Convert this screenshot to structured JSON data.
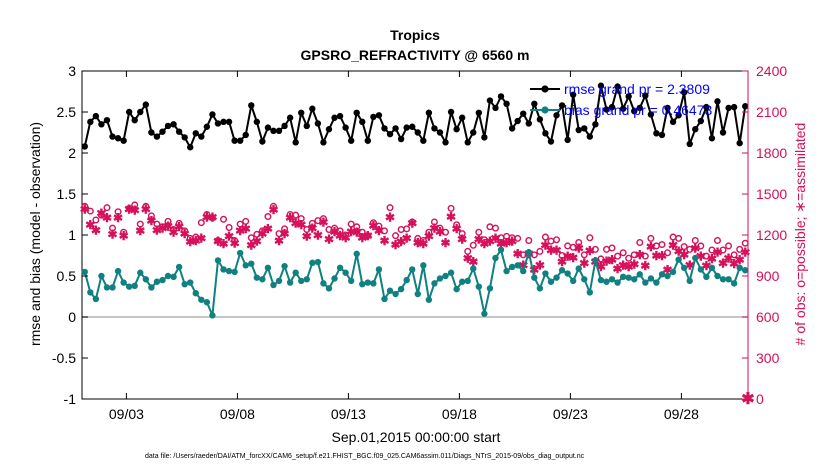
{
  "colors": {
    "rmse": "#000000",
    "bias": "#108080",
    "obs": "#d6105a",
    "legend_text": "#0000ff",
    "zero_line": "#b4b4b4",
    "axis": "#000000"
  },
  "chart_data": {
    "type": "line",
    "title": "Tropics",
    "subtitle": "GPSRO_REFRACTIVITY @ 6560 m",
    "xlabel": "Sep.01,2015 00:00:00 start",
    "ylabel": "rmse and bias (model - observation)",
    "y2label": "# of obs: o=possible; ∗=assimilated",
    "footnote": "data file: /Users/raeder/DAI/ATM_forcXX/CAM6_setup/f.e21.FHIST_BGC.f09_025.CAM6assim.011/Diags_NTrS_2015-09/obs_diag_output.nc",
    "xlim": [
      1.0,
      31.0
    ],
    "ylim": [
      -1,
      3
    ],
    "y2lim": [
      0,
      2400
    ],
    "x_ticks": [
      3,
      8,
      13,
      18,
      23,
      28
    ],
    "x_tick_labels": [
      "09/03",
      "09/08",
      "09/13",
      "09/18",
      "09/23",
      "09/28"
    ],
    "y_ticks": [
      -1,
      -0.5,
      0,
      0.5,
      1,
      1.5,
      2,
      2.5,
      3
    ],
    "y_tick_labels": [
      "-1",
      "-0.5",
      "0",
      "0.5",
      "1",
      "1.5",
      "2",
      "2.5",
      "3"
    ],
    "y2_ticks": [
      0,
      300,
      600,
      900,
      1200,
      1500,
      1800,
      2100,
      2400
    ],
    "y2_tick_labels": [
      "0",
      "300",
      "600",
      "900",
      "1200",
      "1500",
      "1800",
      "2100",
      "2400"
    ],
    "legend": [
      {
        "name": "rmse grand pr = 2.3809",
        "series": "rmse"
      },
      {
        "name": "bias grand pr = 0.46473",
        "series": "bias"
      }
    ],
    "x": [
      1.125,
      1.375,
      1.625,
      1.875,
      2.125,
      2.375,
      2.625,
      2.875,
      3.125,
      3.375,
      3.625,
      3.875,
      4.125,
      4.375,
      4.625,
      4.875,
      5.125,
      5.375,
      5.625,
      5.875,
      6.125,
      6.375,
      6.625,
      6.875,
      7.125,
      7.375,
      7.625,
      7.875,
      8.125,
      8.375,
      8.625,
      8.875,
      9.125,
      9.375,
      9.625,
      9.875,
      10.125,
      10.375,
      10.625,
      10.875,
      11.125,
      11.375,
      11.625,
      11.875,
      12.125,
      12.375,
      12.625,
      12.875,
      13.125,
      13.375,
      13.625,
      13.875,
      14.125,
      14.375,
      14.625,
      14.875,
      15.125,
      15.375,
      15.625,
      15.875,
      16.125,
      16.375,
      16.625,
      16.875,
      17.125,
      17.375,
      17.625,
      17.875,
      18.125,
      18.375,
      18.625,
      18.875,
      19.125,
      19.375,
      19.625,
      19.875,
      20.125,
      20.375,
      20.625,
      20.875,
      21.125,
      21.375,
      21.625,
      21.875,
      22.125,
      22.375,
      22.625,
      22.875,
      23.125,
      23.375,
      23.625,
      23.875,
      24.125,
      24.375,
      24.625,
      24.875,
      25.125,
      25.375,
      25.625,
      25.875,
      26.125,
      26.375,
      26.625,
      26.875,
      27.125,
      27.375,
      27.625,
      27.875,
      28.125,
      28.375,
      28.625,
      28.875,
      29.125,
      29.375,
      29.625,
      29.875,
      30.125,
      30.375,
      30.625,
      30.875
    ],
    "series": [
      {
        "name": "rmse",
        "axis": "left",
        "values": [
          2.08,
          2.38,
          2.45,
          2.35,
          2.4,
          2.2,
          2.18,
          2.15,
          2.5,
          2.4,
          2.5,
          2.59,
          2.25,
          2.2,
          2.26,
          2.33,
          2.35,
          2.26,
          2.19,
          2.07,
          2.24,
          2.2,
          2.32,
          2.47,
          2.36,
          2.38,
          2.38,
          2.15,
          2.15,
          2.22,
          2.58,
          2.38,
          2.14,
          2.31,
          2.27,
          2.27,
          2.33,
          2.43,
          2.13,
          2.49,
          2.33,
          2.54,
          2.36,
          2.13,
          2.29,
          2.43,
          2.45,
          2.31,
          2.15,
          2.49,
          2.38,
          2.15,
          2.44,
          2.46,
          2.3,
          2.23,
          2.3,
          2.17,
          2.31,
          2.32,
          2.25,
          2.15,
          2.49,
          2.3,
          2.25,
          2.13,
          2.5,
          2.29,
          2.43,
          2.13,
          2.25,
          2.49,
          2.19,
          2.64,
          2.55,
          2.69,
          2.6,
          2.3,
          2.39,
          2.48,
          2.36,
          2.6,
          2.41,
          2.24,
          2.14,
          2.46,
          2.58,
          2.16,
          2.71,
          2.28,
          2.3,
          2.2,
          2.35,
          2.82,
          2.53,
          2.56,
          2.81,
          2.54,
          2.69,
          2.51,
          2.55,
          2.7,
          2.47,
          2.24,
          2.22,
          2.55,
          2.38,
          2.46,
          2.74,
          2.11,
          2.29,
          2.39,
          2.56,
          2.18,
          2.63,
          2.25,
          2.55,
          2.56,
          2.12,
          2.57
        ]
      },
      {
        "name": "bias",
        "axis": "left",
        "values": [
          0.55,
          0.3,
          0.22,
          0.5,
          0.36,
          0.36,
          0.56,
          0.42,
          0.37,
          0.38,
          0.54,
          0.46,
          0.36,
          0.43,
          0.45,
          0.5,
          0.49,
          0.61,
          0.4,
          0.42,
          0.29,
          0.21,
          0.18,
          0.02,
          0.69,
          0.58,
          0.56,
          0.55,
          0.78,
          0.63,
          0.65,
          0.48,
          0.46,
          0.6,
          0.39,
          0.44,
          0.62,
          0.42,
          0.54,
          0.44,
          0.46,
          0.66,
          0.67,
          0.41,
          0.35,
          0.47,
          0.6,
          0.54,
          0.44,
          0.77,
          0.4,
          0.42,
          0.41,
          0.58,
          0.22,
          0.32,
          0.28,
          0.34,
          0.45,
          0.58,
          0.28,
          0.63,
          0.21,
          0.41,
          0.47,
          0.5,
          0.54,
          0.34,
          0.43,
          0.44,
          0.59,
          0.37,
          0.04,
          0.35,
          0.72,
          0.82,
          0.56,
          0.61,
          0.63,
          0.56,
          0.79,
          0.48,
          0.35,
          0.53,
          0.43,
          0.48,
          0.57,
          0.53,
          0.44,
          0.59,
          0.46,
          0.3,
          0.69,
          0.45,
          0.43,
          0.46,
          0.42,
          0.49,
          0.48,
          0.46,
          0.52,
          0.42,
          0.47,
          0.42,
          0.52,
          0.5,
          0.55,
          0.7,
          0.6,
          0.44,
          0.72,
          0.58,
          0.49,
          0.6,
          0.5,
          0.46,
          0.46,
          0.41,
          0.6,
          0.57
        ]
      },
      {
        "name": "obs possible",
        "axis": "right",
        "marker": "o",
        "values": [
          1410,
          1375,
          1310,
          1345,
          1400,
          1250,
          1370,
          1220,
          1395,
          1420,
          1280,
          1410,
          1340,
          1280,
          1260,
          1300,
          1240,
          1285,
          1230,
          1175,
          1185,
          1290,
          1350,
          1325,
          1160,
          1315,
          1255,
          1160,
          1280,
          1300,
          1180,
          1205,
          1230,
          1335,
          1410,
          1210,
          1245,
          1350,
          1345,
          1320,
          1240,
          1285,
          1305,
          1320,
          1240,
          1250,
          1230,
          1200,
          1280,
          1260,
          1220,
          1195,
          1290,
          1265,
          1230,
          1400,
          1195,
          1240,
          1245,
          1295,
          1175,
          1160,
          1220,
          1295,
          1250,
          1220,
          1395,
          1275,
          1210,
          1080,
          1125,
          1220,
          1165,
          1260,
          1250,
          1180,
          1190,
          1180,
          1175,
          1055,
          1160,
          1055,
          1080,
          1185,
          1155,
          1165,
          1050,
          1120,
          1110,
          1145,
          1055,
          1180,
          1095,
          1025,
          1095,
          1105,
          1045,
          1070,
          1030,
          1055,
          1145,
          1045,
          1175,
          1120,
          1130,
          1070,
          1185,
          1175,
          1115,
          1095,
          1160,
          1120,
          1045,
          1090,
          1160,
          1090,
          1120,
          1055,
          1095,
          1140
        ]
      },
      {
        "name": "obs assimilated",
        "axis": "right",
        "marker": "*",
        "values": [
          1395,
          1280,
          1240,
          1365,
          1330,
          1210,
          1330,
          1200,
          1395,
          1385,
          1235,
          1395,
          1310,
          1240,
          1255,
          1270,
          1225,
          1265,
          1215,
          1155,
          1165,
          1180,
          1335,
          1335,
          1160,
          1140,
          1195,
          1145,
          1235,
          1250,
          1130,
          1160,
          1215,
          1250,
          1390,
          1165,
          1215,
          1330,
          1290,
          1280,
          1195,
          1255,
          1205,
          1300,
          1175,
          1230,
          1200,
          1185,
          1230,
          1225,
          1185,
          1200,
          1275,
          1235,
          1165,
          1335,
          1135,
          1155,
          1180,
          1290,
          1150,
          1140,
          1195,
          1255,
          1230,
          1150,
          1340,
          1250,
          1175,
          1035,
          1010,
          1175,
          1140,
          1160,
          1180,
          1140,
          1150,
          1160,
          1070,
          985,
          1070,
          950,
          985,
          1130,
          1095,
          1095,
          1010,
          1050,
          1040,
          1110,
          1000,
          1090,
          1010,
          975,
          1015,
          1025,
          960,
          985,
          975,
          990,
          1060,
          980,
          1120,
          1055,
          1055,
          950,
          1130,
          1085,
          1060,
          985,
          1110,
          1050,
          980,
          1030,
          1080,
          1000,
          1035,
          995,
          1025,
          1080
        ]
      }
    ]
  }
}
